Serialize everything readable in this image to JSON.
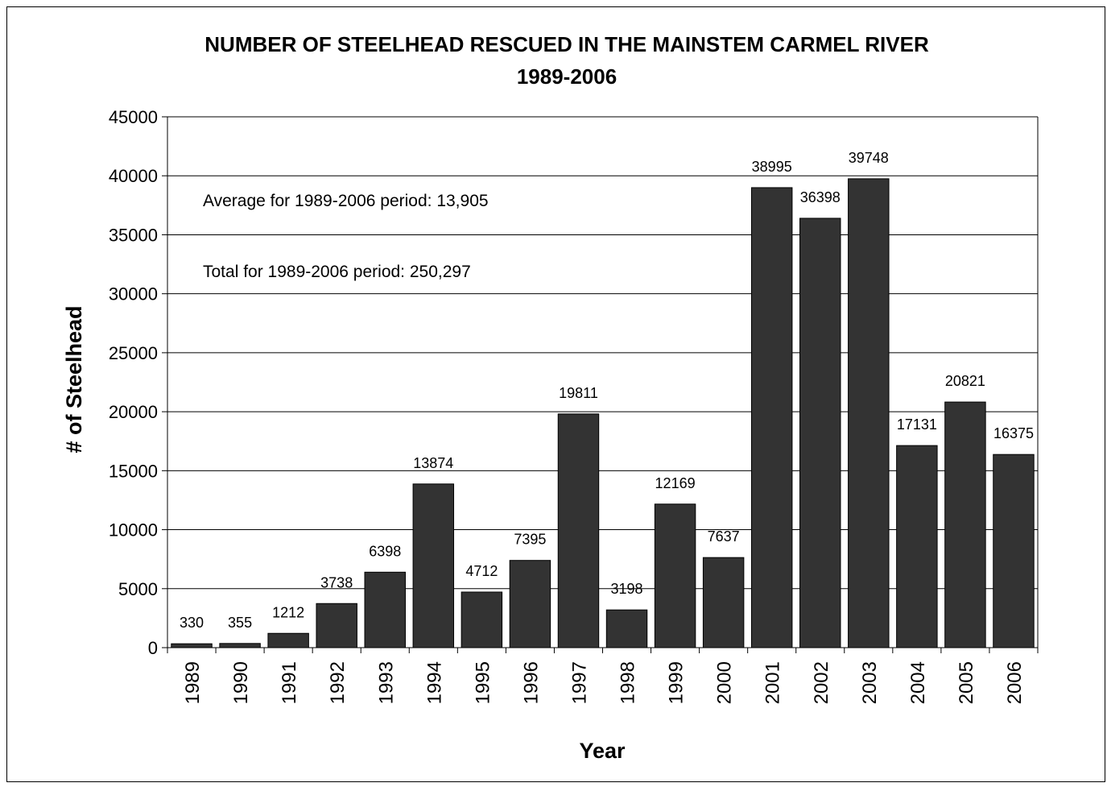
{
  "chart_data": {
    "type": "bar",
    "title": [
      "NUMBER OF STEELHEAD RESCUED IN THE MAINSTEM CARMEL RIVER",
      "1989-2006"
    ],
    "xlabel": "Year",
    "ylabel": "# of Steelhead",
    "categories": [
      "1989",
      "1990",
      "1991",
      "1992",
      "1993",
      "1994",
      "1995",
      "1996",
      "1997",
      "1998",
      "1999",
      "2000",
      "2001",
      "2002",
      "2003",
      "2004",
      "2005",
      "2006"
    ],
    "values": [
      330,
      355,
      1212,
      3738,
      6398,
      13874,
      4712,
      7395,
      19811,
      3198,
      12169,
      7637,
      38995,
      36398,
      39748,
      17131,
      20821,
      16375
    ],
    "yticks": [
      "0",
      "5000",
      "10000",
      "15000",
      "20000",
      "25000",
      "30000",
      "35000",
      "40000",
      "45000"
    ],
    "ylim": [
      0,
      45000
    ],
    "grid": true,
    "annotations": [
      "Average for 1989-2006 period: 13,905",
      "Total for 1989-2006 period: 250,297"
    ],
    "colors": {
      "bar": "#333333",
      "bar_stroke": "#000000",
      "grid": "#000000",
      "background": "#ffffff"
    }
  }
}
